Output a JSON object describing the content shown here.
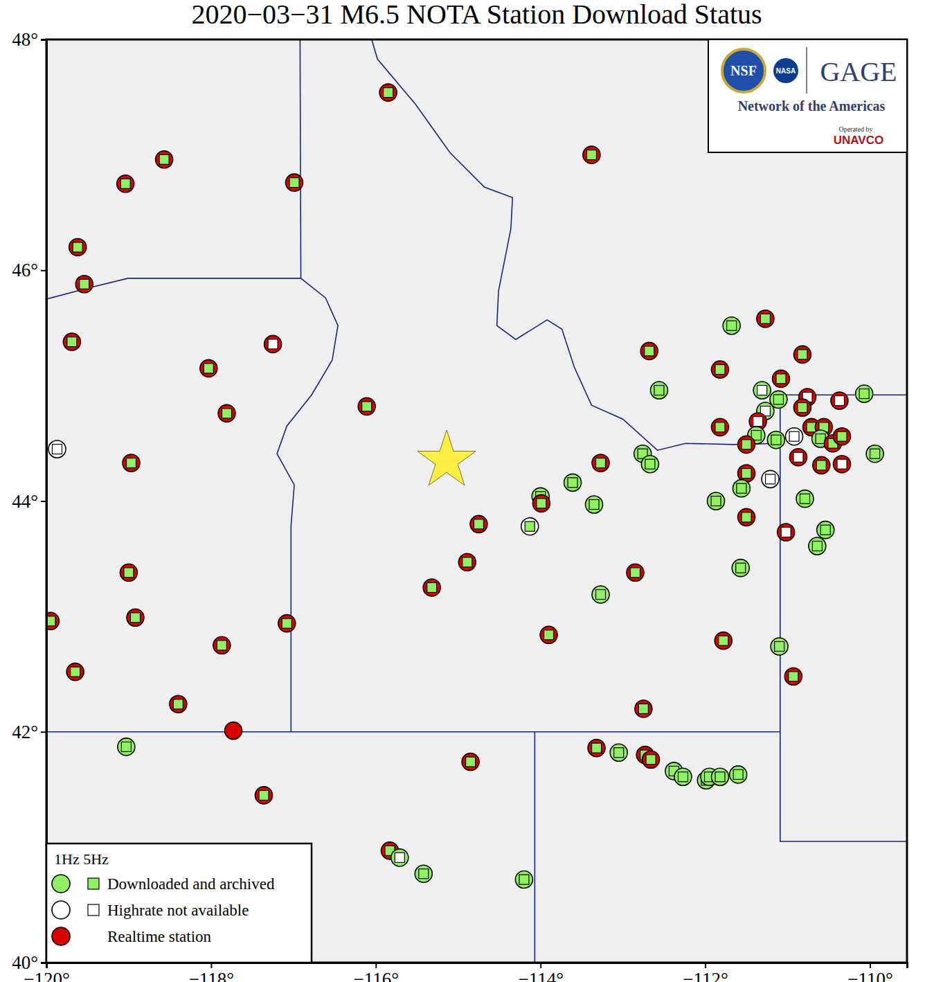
{
  "chart_data": {
    "type": "map",
    "title": "2020−03−31 M6.5 NOTA Station Download Status",
    "xlim": [
      -120,
      -109.55
    ],
    "ylim": [
      40,
      48
    ],
    "xticks": [
      {
        "value": -120,
        "label": "−120°"
      },
      {
        "value": -118,
        "label": "−118°"
      },
      {
        "value": -116,
        "label": "−116°"
      },
      {
        "value": -114,
        "label": "−114°"
      },
      {
        "value": -112,
        "label": "−112°"
      },
      {
        "value": -110,
        "label": "−110°"
      }
    ],
    "yticks": [
      {
        "value": 40,
        "label": "40°"
      },
      {
        "value": 42,
        "label": "42°"
      },
      {
        "value": 44,
        "label": "44°"
      },
      {
        "value": 46,
        "label": "46°"
      },
      {
        "value": 48,
        "label": "48°"
      }
    ],
    "legend": "bottom-left",
    "legend_header": "1Hz 5Hz",
    "legend_items": [
      {
        "label": "Downloaded and archived",
        "color": "#8ff060",
        "marker": "circle-square"
      },
      {
        "label": "Highrate not available",
        "color": "#ffffff",
        "marker": "circle-square"
      },
      {
        "label": "Realtime station",
        "color": "#d90000",
        "marker": "circle"
      }
    ],
    "logo": {
      "texts": [
        "NSF",
        "NASA",
        "GAGE",
        "Network of the Americas",
        "Operated by",
        "UNAVCO"
      ]
    },
    "epicenter": {
      "lon": -115.14,
      "lat": 44.35,
      "color": "#ffee44",
      "marker": "star"
    },
    "borders": [
      {
        "lon": [
          -120,
          -119.47,
          -119.01,
          -116.91
        ],
        "lat": [
          45.75,
          45.85,
          45.93,
          45.93
        ]
      },
      {
        "lon": [
          -116.92,
          -116.91
        ],
        "lat": [
          48.0,
          45.93
        ]
      },
      {
        "lon": [
          -116.91,
          -116.61,
          -116.46,
          -116.53,
          -116.78,
          -117.08,
          -117.2,
          -116.99,
          -117.03,
          -117.03
        ],
        "lat": [
          45.93,
          45.76,
          45.52,
          45.22,
          44.92,
          44.65,
          44.41,
          44.14,
          43.78,
          42.0
        ]
      },
      {
        "lon": [
          -120,
          -111.09
        ],
        "lat": [
          42,
          42
        ]
      },
      {
        "lon": [
          -114.07,
          -114.07
        ],
        "lat": [
          42,
          40
        ]
      },
      {
        "lon": [
          -111.09,
          -111.09,
          -109.55
        ],
        "lat": [
          44.92,
          41.05,
          41.05
        ]
      },
      {
        "lon": [
          -111.09,
          -109.55
        ],
        "lat": [
          44.92,
          44.92
        ]
      },
      {
        "lon": [
          -116.05,
          -115.98,
          -115.52,
          -115.1,
          -114.68,
          -114.34,
          -114.36,
          -114.51,
          -114.53,
          -114.3,
          -113.92,
          -113.74,
          -113.59,
          -113.38,
          -113.0,
          -112.58,
          -112.24,
          -111.66,
          -111.09
        ],
        "lat": [
          48,
          47.83,
          47.44,
          47.02,
          46.72,
          46.63,
          46.36,
          45.82,
          45.52,
          45.4,
          45.57,
          45.49,
          45.16,
          44.83,
          44.71,
          44.44,
          44.5,
          44.49,
          44.5
        ]
      }
    ],
    "stations": [
      {
        "lon": -115.85,
        "lat": 47.54,
        "color": "#d90000",
        "square_color": "#8ff060"
      },
      {
        "lon": -113.38,
        "lat": 47.0,
        "color": "#d90000",
        "square_color": "#8ff060"
      },
      {
        "lon": -118.57,
        "lat": 46.96,
        "color": "#d90000",
        "square_color": "#8ff060"
      },
      {
        "lon": -119.04,
        "lat": 46.75,
        "color": "#d90000",
        "square_color": "#8ff060"
      },
      {
        "lon": -116.99,
        "lat": 46.76,
        "color": "#d90000",
        "square_color": "#8ff060"
      },
      {
        "lon": -119.62,
        "lat": 46.2,
        "color": "#d90000",
        "square_color": "#8ff060"
      },
      {
        "lon": -119.54,
        "lat": 45.88,
        "color": "#d90000",
        "square_color": "#8ff060"
      },
      {
        "lon": -119.69,
        "lat": 45.38,
        "color": "#d90000",
        "square_color": "#8ff060"
      },
      {
        "lon": -117.25,
        "lat": 45.36,
        "color": "#d90000",
        "square_color": "#ffffff"
      },
      {
        "lon": -118.03,
        "lat": 45.15,
        "color": "#d90000",
        "square_color": "#8ff060"
      },
      {
        "lon": -117.81,
        "lat": 44.76,
        "color": "#d90000",
        "square_color": "#8ff060"
      },
      {
        "lon": -116.11,
        "lat": 44.82,
        "color": "#d90000",
        "square_color": "#8ff060"
      },
      {
        "lon": -119.87,
        "lat": 44.45,
        "color": "#ffffff",
        "square_color": "#ffffff"
      },
      {
        "lon": -118.97,
        "lat": 44.33,
        "color": "#d90000",
        "square_color": "#8ff060"
      },
      {
        "lon": -119.0,
        "lat": 43.38,
        "color": "#d90000",
        "square_color": "#8ff060"
      },
      {
        "lon": -118.92,
        "lat": 42.99,
        "color": "#d90000",
        "square_color": "#8ff060"
      },
      {
        "lon": -119.95,
        "lat": 42.96,
        "color": "#d90000",
        "square_color": "#8ff060"
      },
      {
        "lon": -119.65,
        "lat": 42.52,
        "color": "#d90000",
        "square_color": "#8ff060"
      },
      {
        "lon": -117.87,
        "lat": 42.75,
        "color": "#d90000",
        "square_color": "#8ff060"
      },
      {
        "lon": -117.08,
        "lat": 42.94,
        "color": "#d90000",
        "square_color": "#8ff060"
      },
      {
        "lon": -118.4,
        "lat": 42.24,
        "color": "#d90000",
        "square_color": "#8ff060"
      },
      {
        "lon": -117.73,
        "lat": 42.01,
        "color": "#d90000",
        "square_color": null
      },
      {
        "lon": -119.03,
        "lat": 41.87,
        "color": "#8ff060",
        "square_color": "#8ff060"
      },
      {
        "lon": -117.36,
        "lat": 41.45,
        "color": "#d90000",
        "square_color": "#8ff060"
      },
      {
        "lon": -114.75,
        "lat": 43.8,
        "color": "#d90000",
        "square_color": "#8ff060"
      },
      {
        "lon": -114.89,
        "lat": 43.47,
        "color": "#d90000",
        "square_color": "#8ff060"
      },
      {
        "lon": -115.32,
        "lat": 43.25,
        "color": "#d90000",
        "square_color": "#8ff060"
      },
      {
        "lon": -114.0,
        "lat": 44.04,
        "color": "#8ff060",
        "square_color": "#8ff060"
      },
      {
        "lon": -113.99,
        "lat": 43.98,
        "color": "#d90000",
        "square_color": "#8ff060"
      },
      {
        "lon": -114.13,
        "lat": 43.78,
        "color": "#ffffff",
        "square_color": "#8ff060"
      },
      {
        "lon": -113.61,
        "lat": 44.16,
        "color": "#8ff060",
        "square_color": "#8ff060"
      },
      {
        "lon": -113.35,
        "lat": 43.97,
        "color": "#8ff060",
        "square_color": "#8ff060"
      },
      {
        "lon": -113.27,
        "lat": 44.33,
        "color": "#d90000",
        "square_color": "#8ff060"
      },
      {
        "lon": -112.76,
        "lat": 44.41,
        "color": "#8ff060",
        "square_color": "#8ff060"
      },
      {
        "lon": -112.67,
        "lat": 44.32,
        "color": "#8ff060",
        "square_color": "#8ff060"
      },
      {
        "lon": -113.27,
        "lat": 43.19,
        "color": "#8ff060",
        "square_color": "#8ff060"
      },
      {
        "lon": -112.85,
        "lat": 43.38,
        "color": "#d90000",
        "square_color": "#8ff060"
      },
      {
        "lon": -113.9,
        "lat": 42.84,
        "color": "#d90000",
        "square_color": "#8ff060"
      },
      {
        "lon": -112.68,
        "lat": 45.3,
        "color": "#d90000",
        "square_color": "#8ff060"
      },
      {
        "lon": -112.56,
        "lat": 44.96,
        "color": "#8ff060",
        "square_color": "#8ff060"
      },
      {
        "lon": -111.68,
        "lat": 45.52,
        "color": "#8ff060",
        "square_color": "#8ff060"
      },
      {
        "lon": -111.27,
        "lat": 45.58,
        "color": "#d90000",
        "square_color": "#8ff060"
      },
      {
        "lon": -111.82,
        "lat": 45.14,
        "color": "#d90000",
        "square_color": "#8ff060"
      },
      {
        "lon": -110.82,
        "lat": 45.27,
        "color": "#d90000",
        "square_color": "#8ff060"
      },
      {
        "lon": -111.31,
        "lat": 44.96,
        "color": "#8ff060",
        "square_color": "#ffffff"
      },
      {
        "lon": -111.11,
        "lat": 44.88,
        "color": "#8ff060",
        "square_color": "#8ff060"
      },
      {
        "lon": -111.08,
        "lat": 45.06,
        "color": "#d90000",
        "square_color": "#8ff060"
      },
      {
        "lon": -111.27,
        "lat": 44.78,
        "color": "#8ff060",
        "square_color": "#ffffff"
      },
      {
        "lon": -111.36,
        "lat": 44.69,
        "color": "#d90000",
        "square_color": "#ffffff"
      },
      {
        "lon": -111.38,
        "lat": 44.57,
        "color": "#8ff060",
        "square_color": "#8ff060"
      },
      {
        "lon": -111.14,
        "lat": 44.53,
        "color": "#8ff060",
        "square_color": "#8ff060"
      },
      {
        "lon": -111.5,
        "lat": 44.49,
        "color": "#d90000",
        "square_color": "#8ff060"
      },
      {
        "lon": -110.92,
        "lat": 44.56,
        "color": "#ffffff",
        "square_color": "#ffffff"
      },
      {
        "lon": -110.76,
        "lat": 44.9,
        "color": "#d90000",
        "square_color": "#ffffff"
      },
      {
        "lon": -110.82,
        "lat": 44.81,
        "color": "#d90000",
        "square_color": "#8ff060"
      },
      {
        "lon": -110.37,
        "lat": 44.87,
        "color": "#d90000",
        "square_color": "#ffffff"
      },
      {
        "lon": -110.71,
        "lat": 44.64,
        "color": "#d90000",
        "square_color": "#8ff060"
      },
      {
        "lon": -110.56,
        "lat": 44.64,
        "color": "#d90000",
        "square_color": "#8ff060"
      },
      {
        "lon": -110.6,
        "lat": 44.54,
        "color": "#8ff060",
        "square_color": "#8ff060"
      },
      {
        "lon": -110.45,
        "lat": 44.5,
        "color": "#d90000",
        "square_color": "#8ff060"
      },
      {
        "lon": -110.34,
        "lat": 44.56,
        "color": "#d90000",
        "square_color": "#8ff060"
      },
      {
        "lon": -110.87,
        "lat": 44.38,
        "color": "#d90000",
        "square_color": "#ffffff"
      },
      {
        "lon": -110.59,
        "lat": 44.31,
        "color": "#d90000",
        "square_color": "#8ff060"
      },
      {
        "lon": -110.34,
        "lat": 44.32,
        "color": "#d90000",
        "square_color": "#ffffff"
      },
      {
        "lon": -110.07,
        "lat": 44.93,
        "color": "#8ff060",
        "square_color": "#8ff060"
      },
      {
        "lon": -109.94,
        "lat": 44.41,
        "color": "#8ff060",
        "square_color": "#8ff060"
      },
      {
        "lon": -111.21,
        "lat": 44.19,
        "color": "#ffffff",
        "square_color": "#ffffff"
      },
      {
        "lon": -111.5,
        "lat": 44.24,
        "color": "#d90000",
        "square_color": "#8ff060"
      },
      {
        "lon": -111.56,
        "lat": 44.11,
        "color": "#8ff060",
        "square_color": "#8ff060"
      },
      {
        "lon": -111.87,
        "lat": 44.0,
        "color": "#8ff060",
        "square_color": "#8ff060"
      },
      {
        "lon": -111.5,
        "lat": 43.86,
        "color": "#d90000",
        "square_color": "#8ff060"
      },
      {
        "lon": -110.79,
        "lat": 44.02,
        "color": "#8ff060",
        "square_color": "#8ff060"
      },
      {
        "lon": -110.54,
        "lat": 43.75,
        "color": "#8ff060",
        "square_color": "#8ff060"
      },
      {
        "lon": -110.64,
        "lat": 43.61,
        "color": "#8ff060",
        "square_color": "#8ff060"
      },
      {
        "lon": -111.02,
        "lat": 43.73,
        "color": "#d90000",
        "square_color": "#ffffff"
      },
      {
        "lon": -111.57,
        "lat": 43.42,
        "color": "#8ff060",
        "square_color": "#8ff060"
      },
      {
        "lon": -111.78,
        "lat": 42.79,
        "color": "#d90000",
        "square_color": "#8ff060"
      },
      {
        "lon": -111.1,
        "lat": 42.74,
        "color": "#8ff060",
        "square_color": "#8ff060"
      },
      {
        "lon": -110.93,
        "lat": 42.48,
        "color": "#d90000",
        "square_color": "#8ff060"
      },
      {
        "lon": -111.82,
        "lat": 44.64,
        "color": "#d90000",
        "square_color": "#8ff060"
      },
      {
        "lon": -112.75,
        "lat": 42.2,
        "color": "#d90000",
        "square_color": "#8ff060"
      },
      {
        "lon": -113.32,
        "lat": 41.86,
        "color": "#d90000",
        "square_color": "#8ff060"
      },
      {
        "lon": -113.05,
        "lat": 41.82,
        "color": "#8ff060",
        "square_color": "#8ff060"
      },
      {
        "lon": -112.73,
        "lat": 41.8,
        "color": "#d90000",
        "square_color": "#8ff060"
      },
      {
        "lon": -112.66,
        "lat": 41.76,
        "color": "#d90000",
        "square_color": "#8ff060"
      },
      {
        "lon": -112.38,
        "lat": 41.66,
        "color": "#8ff060",
        "square_color": "#8ff060"
      },
      {
        "lon": -112.27,
        "lat": 41.61,
        "color": "#8ff060",
        "square_color": "#8ff060"
      },
      {
        "lon": -111.99,
        "lat": 41.58,
        "color": "#8ff060",
        "square_color": "#8ff060"
      },
      {
        "lon": -111.95,
        "lat": 41.61,
        "color": "#8ff060",
        "square_color": "#8ff060"
      },
      {
        "lon": -111.82,
        "lat": 41.61,
        "color": "#8ff060",
        "square_color": "#8ff060"
      },
      {
        "lon": -111.6,
        "lat": 41.63,
        "color": "#8ff060",
        "square_color": "#8ff060"
      },
      {
        "lon": -114.85,
        "lat": 41.74,
        "color": "#d90000",
        "square_color": "#8ff060"
      },
      {
        "lon": -115.83,
        "lat": 40.97,
        "color": "#d90000",
        "square_color": "#8ff060"
      },
      {
        "lon": -115.71,
        "lat": 40.91,
        "color": "#8ff060",
        "square_color": "#ffffff"
      },
      {
        "lon": -115.42,
        "lat": 40.77,
        "color": "#8ff060",
        "square_color": "#8ff060"
      },
      {
        "lon": -114.2,
        "lat": 40.72,
        "color": "#8ff060",
        "square_color": "#8ff060"
      }
    ]
  }
}
